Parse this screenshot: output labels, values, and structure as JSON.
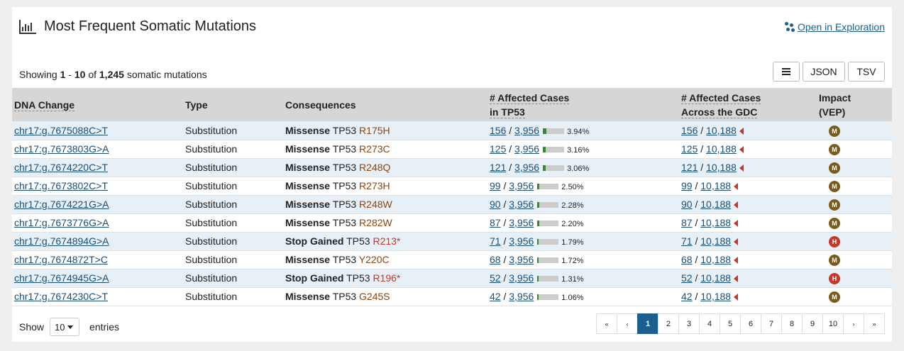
{
  "header": {
    "title": "Most Frequent Somatic Mutations",
    "explore_link": "Open in Exploration"
  },
  "summary": {
    "prefix": "Showing",
    "start": "1",
    "dash": "-",
    "end": "10",
    "of": "of",
    "total": "1,245",
    "suffix": "somatic mutations"
  },
  "buttons": {
    "json": "JSON",
    "tsv": "TSV"
  },
  "columns": {
    "dna_change": "DNA Change",
    "type": "Type",
    "consequences": "Consequences",
    "affected_tp53_line1": "# Affected Cases",
    "affected_tp53_line2": "in TP53",
    "affected_gdc_line1": "# Affected Cases",
    "affected_gdc_line2": "Across the GDC",
    "impact_line1": "Impact",
    "impact_line2": "(VEP)"
  },
  "colors": {
    "moderate": "#7b5a1e",
    "high": "#c0392b",
    "link": "#1a4f7a",
    "active_page": "#1a5f8f"
  },
  "rows": [
    {
      "dna": "chr17:g.7675088C>T",
      "type": "Substitution",
      "consequence": "Missense",
      "gene": "TP53",
      "aa": "R175H",
      "tp53_cases": "156",
      "tp53_total": "3,956",
      "tp53_pct": "3.94%",
      "gdc_cases": "156",
      "gdc_total": "10,188",
      "impact": "M"
    },
    {
      "dna": "chr17:g.7673803G>A",
      "type": "Substitution",
      "consequence": "Missense",
      "gene": "TP53",
      "aa": "R273C",
      "tp53_cases": "125",
      "tp53_total": "3,956",
      "tp53_pct": "3.16%",
      "gdc_cases": "125",
      "gdc_total": "10,188",
      "impact": "M"
    },
    {
      "dna": "chr17:g.7674220C>T",
      "type": "Substitution",
      "consequence": "Missense",
      "gene": "TP53",
      "aa": "R248Q",
      "tp53_cases": "121",
      "tp53_total": "3,956",
      "tp53_pct": "3.06%",
      "gdc_cases": "121",
      "gdc_total": "10,188",
      "impact": "M"
    },
    {
      "dna": "chr17:g.7673802C>T",
      "type": "Substitution",
      "consequence": "Missense",
      "gene": "TP53",
      "aa": "R273H",
      "tp53_cases": "99",
      "tp53_total": "3,956",
      "tp53_pct": "2.50%",
      "gdc_cases": "99",
      "gdc_total": "10,188",
      "impact": "M"
    },
    {
      "dna": "chr17:g.7674221G>A",
      "type": "Substitution",
      "consequence": "Missense",
      "gene": "TP53",
      "aa": "R248W",
      "tp53_cases": "90",
      "tp53_total": "3,956",
      "tp53_pct": "2.28%",
      "gdc_cases": "90",
      "gdc_total": "10,188",
      "impact": "M"
    },
    {
      "dna": "chr17:g.7673776G>A",
      "type": "Substitution",
      "consequence": "Missense",
      "gene": "TP53",
      "aa": "R282W",
      "tp53_cases": "87",
      "tp53_total": "3,956",
      "tp53_pct": "2.20%",
      "gdc_cases": "87",
      "gdc_total": "10,188",
      "impact": "M"
    },
    {
      "dna": "chr17:g.7674894G>A",
      "type": "Substitution",
      "consequence": "Stop Gained",
      "gene": "TP53",
      "aa": "R213*",
      "tp53_cases": "71",
      "tp53_total": "3,956",
      "tp53_pct": "1.79%",
      "gdc_cases": "71",
      "gdc_total": "10,188",
      "impact": "H"
    },
    {
      "dna": "chr17:g.7674872T>C",
      "type": "Substitution",
      "consequence": "Missense",
      "gene": "TP53",
      "aa": "Y220C",
      "tp53_cases": "68",
      "tp53_total": "3,956",
      "tp53_pct": "1.72%",
      "gdc_cases": "68",
      "gdc_total": "10,188",
      "impact": "M"
    },
    {
      "dna": "chr17:g.7674945G>A",
      "type": "Substitution",
      "consequence": "Stop Gained",
      "gene": "TP53",
      "aa": "R196*",
      "tp53_cases": "52",
      "tp53_total": "3,956",
      "tp53_pct": "1.31%",
      "gdc_cases": "52",
      "gdc_total": "10,188",
      "impact": "H"
    },
    {
      "dna": "chr17:g.7674230C>T",
      "type": "Substitution",
      "consequence": "Missense",
      "gene": "TP53",
      "aa": "G245S",
      "tp53_cases": "42",
      "tp53_total": "3,956",
      "tp53_pct": "1.06%",
      "gdc_cases": "42",
      "gdc_total": "10,188",
      "impact": "M"
    }
  ],
  "footer": {
    "show": "Show",
    "page_size": "10",
    "entries": "entries"
  },
  "pagination": {
    "first": "«",
    "prev": "‹",
    "pages": [
      "1",
      "2",
      "3",
      "4",
      "5",
      "6",
      "7",
      "8",
      "9",
      "10"
    ],
    "active": "1",
    "next": "›",
    "last": "»"
  }
}
